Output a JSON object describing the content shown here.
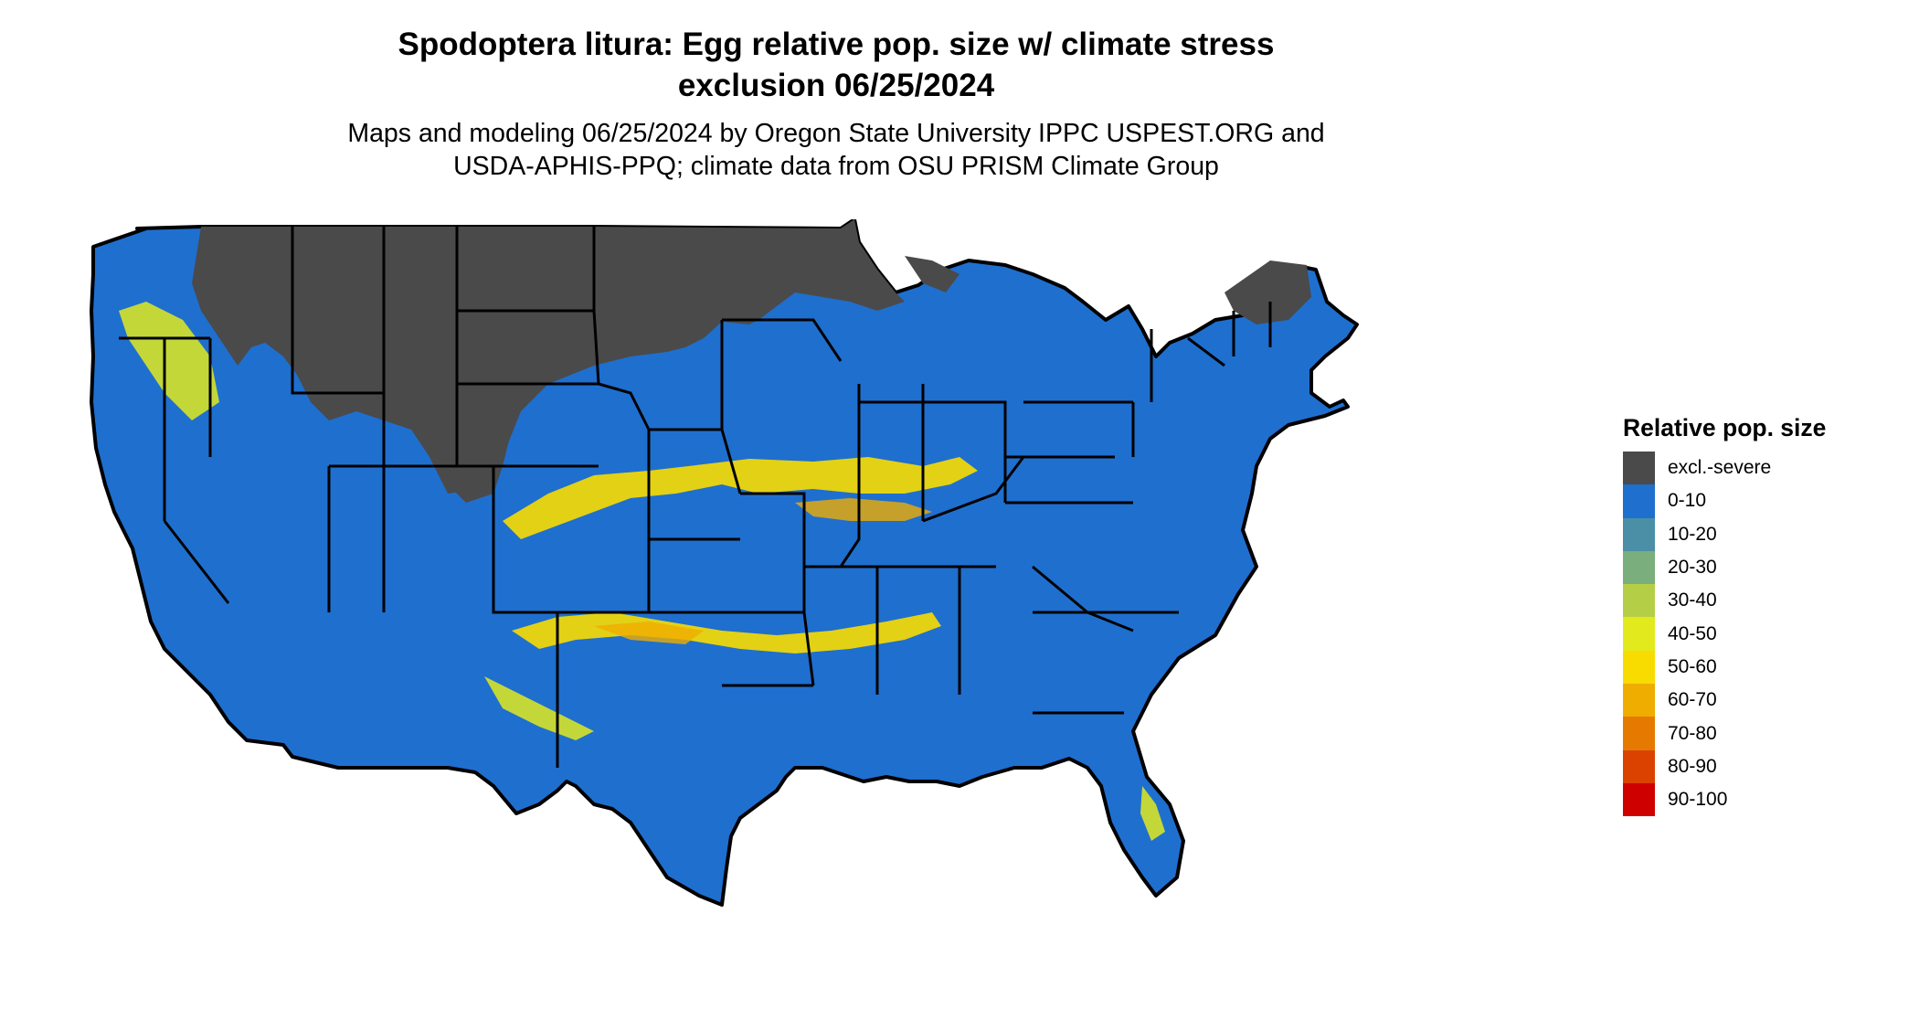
{
  "title_line1": "Spodoptera litura: Egg relative pop. size w/ climate stress",
  "title_line2": "exclusion 06/25/2024",
  "subtitle_line1": "Maps and modeling 06/25/2024 by Oregon State University IPPC USPEST.ORG and",
  "subtitle_line2": "USDA-APHIS-PPQ; climate data from OSU PRISM Climate Group",
  "legend": {
    "title": "Relative pop. size",
    "items": [
      {
        "label": "excl.-severe",
        "color": "#4a4a4a"
      },
      {
        "label": "0-10",
        "color": "#1f6fcf"
      },
      {
        "label": "10-20",
        "color": "#4a8fa6"
      },
      {
        "label": "20-30",
        "color": "#7aae7c"
      },
      {
        "label": "30-40",
        "color": "#b4cf46"
      },
      {
        "label": "40-50",
        "color": "#e2ea1e"
      },
      {
        "label": "50-60",
        "color": "#f8dc00"
      },
      {
        "label": "60-70",
        "color": "#efad00"
      },
      {
        "label": "70-80",
        "color": "#e67a00"
      },
      {
        "label": "80-90",
        "color": "#db4200"
      },
      {
        "label": "90-100",
        "color": "#cf0000"
      }
    ]
  }
}
